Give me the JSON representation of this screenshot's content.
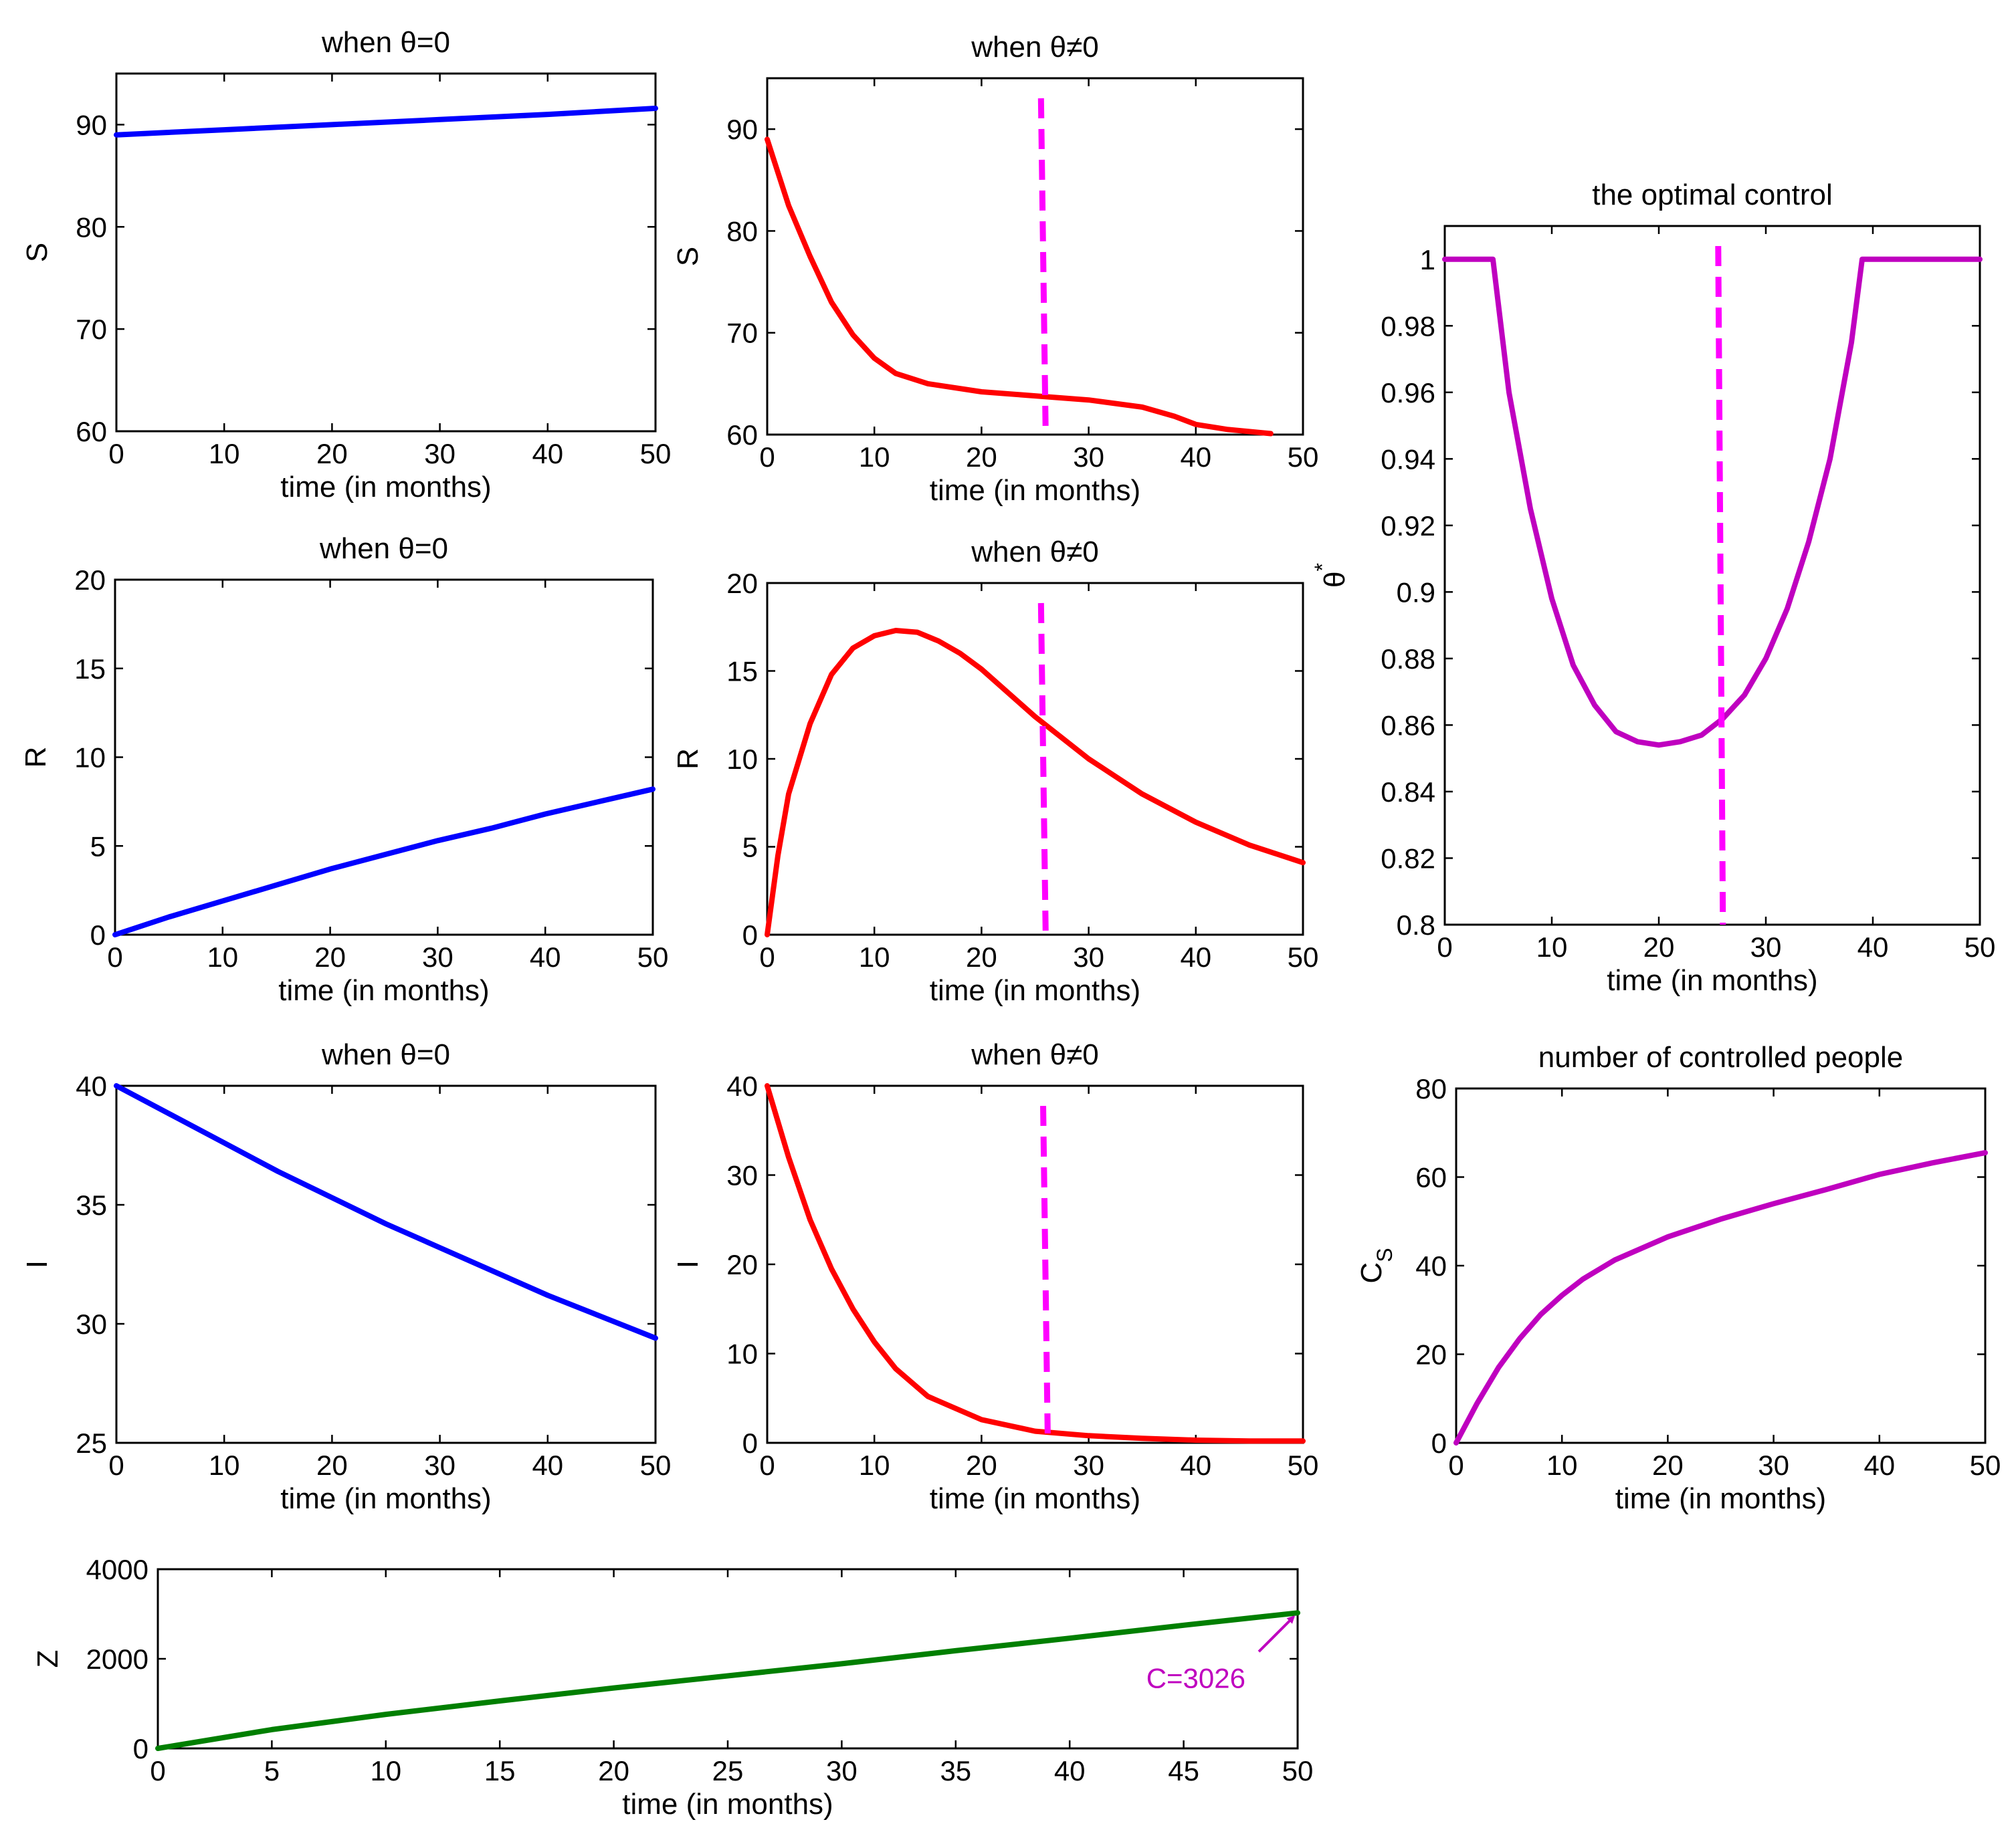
{
  "figure": {
    "description": "Grid of epidemic control model time-series plots"
  },
  "chart_data": [
    {
      "id": "S0",
      "type": "line",
      "title": "when θ=0",
      "xlabel": "time (in months)",
      "ylabel": "S",
      "xlim": [
        0,
        50
      ],
      "ylim": [
        60,
        95
      ],
      "xticks": [
        0,
        10,
        20,
        30,
        40,
        50
      ],
      "yticks": [
        60,
        70,
        80,
        90
      ],
      "series": [
        {
          "name": "S",
          "color": "#0000ff",
          "x": [
            0,
            10,
            20,
            30,
            40,
            50
          ],
          "y": [
            89,
            89.5,
            90,
            90.5,
            91,
            91.6
          ]
        }
      ]
    },
    {
      "id": "S1",
      "type": "line",
      "title": "when θ≠0",
      "xlabel": "time (in months)",
      "ylabel": "S",
      "xlim": [
        0,
        50
      ],
      "ylim": [
        60,
        95
      ],
      "xticks": [
        0,
        10,
        20,
        30,
        40,
        50
      ],
      "yticks": [
        60,
        70,
        80,
        90
      ],
      "vline": {
        "x": 25.8,
        "color": "#ff00ff",
        "dashed": true
      },
      "series": [
        {
          "name": "S",
          "color": "#ff0000",
          "x": [
            0,
            2,
            4,
            6,
            8,
            10,
            12,
            15,
            20,
            25,
            30,
            35,
            38,
            40,
            43,
            47
          ],
          "y": [
            89,
            82.5,
            77.5,
            73,
            69.8,
            67.5,
            66,
            65,
            64.2,
            63.8,
            63.4,
            62.7,
            61.8,
            61,
            60.5,
            60.1
          ]
        }
      ]
    },
    {
      "id": "R0",
      "type": "line",
      "title": "when θ=0",
      "xlabel": "time (in months)",
      "ylabel": "R",
      "xlim": [
        0,
        50
      ],
      "ylim": [
        0,
        20
      ],
      "xticks": [
        0,
        10,
        20,
        30,
        40,
        50
      ],
      "yticks": [
        0,
        5,
        10,
        15,
        20
      ],
      "series": [
        {
          "name": "R",
          "color": "#0000ff",
          "x": [
            0,
            5,
            10,
            15,
            20,
            25,
            30,
            35,
            40,
            45,
            50
          ],
          "y": [
            0,
            1,
            1.9,
            2.8,
            3.7,
            4.5,
            5.3,
            6,
            6.8,
            7.5,
            8.2
          ]
        }
      ]
    },
    {
      "id": "R1",
      "type": "line",
      "title": "when θ≠0",
      "xlabel": "time (in months)",
      "ylabel": "R",
      "xlim": [
        0,
        50
      ],
      "ylim": [
        0,
        20
      ],
      "xticks": [
        0,
        10,
        20,
        30,
        40,
        50
      ],
      "yticks": [
        0,
        5,
        10,
        15,
        20
      ],
      "vline": {
        "x": 25.8,
        "color": "#ff00ff",
        "dashed": true
      },
      "series": [
        {
          "name": "R",
          "color": "#ff0000",
          "x": [
            0,
            1,
            2,
            4,
            6,
            8,
            10,
            12,
            14,
            16,
            18,
            20,
            25,
            30,
            35,
            40,
            45,
            50
          ],
          "y": [
            0,
            4.5,
            8,
            12,
            14.8,
            16.3,
            17,
            17.3,
            17.2,
            16.7,
            16,
            15.1,
            12.4,
            10,
            8,
            6.4,
            5.1,
            4.1
          ]
        }
      ]
    },
    {
      "id": "I0",
      "type": "line",
      "title": "when θ=0",
      "xlabel": "time (in months)",
      "ylabel": "I",
      "xlim": [
        0,
        50
      ],
      "ylim": [
        25,
        40
      ],
      "xticks": [
        0,
        10,
        20,
        30,
        40,
        50
      ],
      "yticks": [
        25,
        30,
        35,
        40
      ],
      "series": [
        {
          "name": "I",
          "color": "#0000ff",
          "x": [
            0,
            5,
            10,
            15,
            20,
            25,
            30,
            35,
            40,
            45,
            50
          ],
          "y": [
            40,
            38.8,
            37.6,
            36.4,
            35.3,
            34.2,
            33.2,
            32.2,
            31.2,
            30.3,
            29.4
          ]
        }
      ]
    },
    {
      "id": "I1",
      "type": "line",
      "title": "when θ≠0",
      "xlabel": "time (in months)",
      "ylabel": "I",
      "xlim": [
        0,
        50
      ],
      "ylim": [
        0,
        40
      ],
      "xticks": [
        0,
        10,
        20,
        30,
        40,
        50
      ],
      "yticks": [
        0,
        10,
        20,
        30,
        40
      ],
      "vline": {
        "x": 26,
        "color": "#ff00ff",
        "dashed": true
      },
      "series": [
        {
          "name": "I",
          "color": "#ff0000",
          "x": [
            0,
            2,
            4,
            6,
            8,
            10,
            12,
            15,
            20,
            25,
            30,
            35,
            40,
            45,
            50
          ],
          "y": [
            40,
            32,
            25,
            19.5,
            15,
            11.3,
            8.3,
            5.2,
            2.6,
            1.3,
            0.8,
            0.5,
            0.3,
            0.2,
            0.2
          ]
        }
      ]
    },
    {
      "id": "theta",
      "type": "line",
      "title": "the optimal control",
      "xlabel": "time (in months)",
      "ylabel": "θ",
      "ylabel_sup": "*",
      "xlim": [
        0,
        50
      ],
      "ylim": [
        0.8,
        1.01
      ],
      "xticks": [
        0,
        10,
        20,
        30,
        40,
        50
      ],
      "yticks": [
        0.8,
        0.82,
        0.84,
        0.86,
        0.88,
        0.9,
        0.92,
        0.94,
        0.96,
        0.98,
        1
      ],
      "vline": {
        "x": 25.8,
        "color": "#ff00ff",
        "dashed": true
      },
      "series": [
        {
          "name": "θ*",
          "color": "#bf00bf",
          "x": [
            0,
            4.5,
            6,
            8,
            10,
            12,
            14,
            16,
            18,
            20,
            22,
            24,
            26,
            28,
            30,
            32,
            34,
            36,
            38,
            39,
            40,
            45,
            50
          ],
          "y": [
            1,
            1,
            0.96,
            0.925,
            0.898,
            0.878,
            0.866,
            0.858,
            0.855,
            0.854,
            0.855,
            0.857,
            0.862,
            0.869,
            0.88,
            0.895,
            0.915,
            0.94,
            0.975,
            1,
            1,
            1,
            1
          ]
        }
      ]
    },
    {
      "id": "Cs",
      "type": "line",
      "title": "number of controlled people",
      "xlabel": "time (in months)",
      "ylabel": "C",
      "ylabel_sub": "S",
      "xlim": [
        0,
        50
      ],
      "ylim": [
        0,
        80
      ],
      "xticks": [
        0,
        10,
        20,
        30,
        40,
        50
      ],
      "yticks": [
        0,
        20,
        40,
        60,
        80
      ],
      "series": [
        {
          "name": "Cs",
          "color": "#bf00bf",
          "x": [
            0,
            2,
            4,
            6,
            8,
            10,
            12,
            15,
            20,
            25,
            30,
            35,
            40,
            45,
            50
          ],
          "y": [
            0,
            9,
            17,
            23.5,
            29,
            33.3,
            37,
            41.3,
            46.5,
            50.5,
            54,
            57.2,
            60.6,
            63.2,
            65.5
          ]
        }
      ]
    },
    {
      "id": "Z",
      "type": "line",
      "title": "",
      "xlabel": "time (in months)",
      "ylabel": "Z",
      "xlim": [
        0,
        50
      ],
      "ylim": [
        0,
        4000
      ],
      "xticks": [
        0,
        5,
        10,
        15,
        20,
        25,
        30,
        35,
        40,
        45,
        50
      ],
      "yticks": [
        0,
        2000,
        4000
      ],
      "annotation": {
        "text": "C=3026",
        "color": "#bf00bf",
        "x": 50,
        "y": 3026
      },
      "series": [
        {
          "name": "Z",
          "color": "#007f00",
          "x": [
            0,
            5,
            10,
            15,
            20,
            25,
            30,
            35,
            40,
            45,
            50
          ],
          "y": [
            0,
            420,
            760,
            1060,
            1350,
            1620,
            1890,
            2180,
            2460,
            2750,
            3026
          ]
        }
      ]
    }
  ]
}
